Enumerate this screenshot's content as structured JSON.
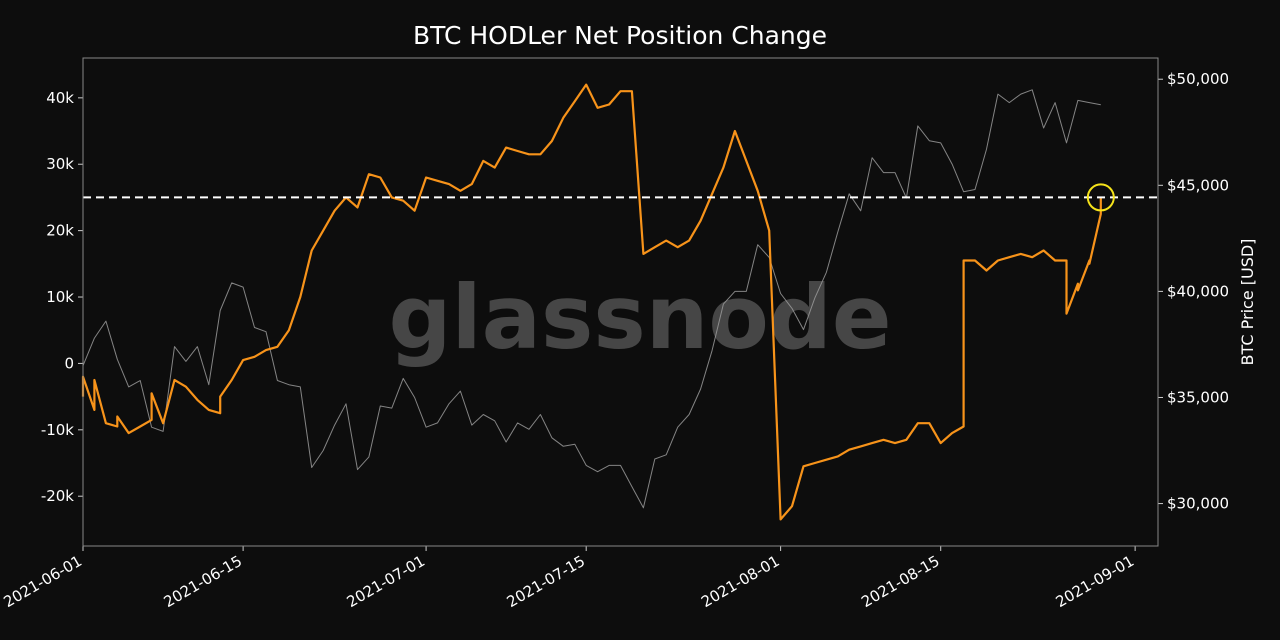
{
  "chart_data": {
    "type": "line",
    "title": "BTC HODLer Net Position Change",
    "watermark": "glassnode",
    "ylabel_right": "BTC Price [USD]",
    "grid": false,
    "x_range": [
      "2021-06-01",
      "2021-09-03"
    ],
    "x_ticks": [
      "2021-06-01",
      "2021-06-15",
      "2021-07-01",
      "2021-07-15",
      "2021-08-01",
      "2021-08-15",
      "2021-09-01"
    ],
    "y_left": {
      "range": [
        -27500,
        46000
      ],
      "ticks": [
        40000,
        30000,
        20000,
        10000,
        0,
        -10000,
        -20000
      ],
      "tick_labels": [
        "40k",
        "30k",
        "20k",
        "10k",
        "0",
        "-10k",
        "-20k"
      ]
    },
    "y_right": {
      "range": [
        28000,
        51000
      ],
      "ticks": [
        50000,
        45000,
        40000,
        35000,
        30000
      ],
      "tick_labels": [
        "$50,000",
        "$45,000",
        "$40,000",
        "$35,000",
        "$30,000"
      ]
    },
    "reference_line": {
      "axis": "left",
      "value": 25000,
      "style": "dashed",
      "color": "#ffffff"
    },
    "highlight_circle": {
      "date": "2021-08-29",
      "value": 25000,
      "color": "#f5e31a"
    },
    "colors": {
      "background": "#0d0d0d",
      "hodler_series": "#f7931a",
      "price_series": "#9a9a9a",
      "frame": "#888888"
    },
    "series": [
      {
        "name": "HODLer Net Position Change",
        "axis": "left",
        "color": "#f7931a",
        "points": [
          [
            "2021-06-01",
            -5000
          ],
          [
            "2021-06-01",
            -2000
          ],
          [
            "2021-06-02",
            -7000
          ],
          [
            "2021-06-02",
            -2500
          ],
          [
            "2021-06-03",
            -9000
          ],
          [
            "2021-06-04",
            -9500
          ],
          [
            "2021-06-04",
            -8000
          ],
          [
            "2021-06-05",
            -10500
          ],
          [
            "2021-06-06",
            -9500
          ],
          [
            "2021-06-07",
            -8500
          ],
          [
            "2021-06-07",
            -4500
          ],
          [
            "2021-06-08",
            -9000
          ],
          [
            "2021-06-09",
            -2500
          ],
          [
            "2021-06-10",
            -3500
          ],
          [
            "2021-06-11",
            -5500
          ],
          [
            "2021-06-12",
            -7000
          ],
          [
            "2021-06-13",
            -7500
          ],
          [
            "2021-06-13",
            -5000
          ],
          [
            "2021-06-14",
            -2500
          ],
          [
            "2021-06-15",
            500
          ],
          [
            "2021-06-16",
            1000
          ],
          [
            "2021-06-17",
            2000
          ],
          [
            "2021-06-18",
            2500
          ],
          [
            "2021-06-19",
            5000
          ],
          [
            "2021-06-20",
            10000
          ],
          [
            "2021-06-21",
            17000
          ],
          [
            "2021-06-22",
            20000
          ],
          [
            "2021-06-23",
            23000
          ],
          [
            "2021-06-24",
            25000
          ],
          [
            "2021-06-25",
            23500
          ],
          [
            "2021-06-26",
            28500
          ],
          [
            "2021-06-27",
            28000
          ],
          [
            "2021-06-28",
            25000
          ],
          [
            "2021-06-29",
            24500
          ],
          [
            "2021-06-30",
            23000
          ],
          [
            "2021-07-01",
            28000
          ],
          [
            "2021-07-02",
            27500
          ],
          [
            "2021-07-03",
            27000
          ],
          [
            "2021-07-04",
            26000
          ],
          [
            "2021-07-05",
            27000
          ],
          [
            "2021-07-06",
            30500
          ],
          [
            "2021-07-07",
            29500
          ],
          [
            "2021-07-08",
            32500
          ],
          [
            "2021-07-09",
            32000
          ],
          [
            "2021-07-10",
            31500
          ],
          [
            "2021-07-11",
            31500
          ],
          [
            "2021-07-12",
            33500
          ],
          [
            "2021-07-13",
            37000
          ],
          [
            "2021-07-14",
            39500
          ],
          [
            "2021-07-15",
            42000
          ],
          [
            "2021-07-16",
            38500
          ],
          [
            "2021-07-17",
            39000
          ],
          [
            "2021-07-18",
            41000
          ],
          [
            "2021-07-19",
            41000
          ],
          [
            "2021-07-20",
            16500
          ],
          [
            "2021-07-21",
            17500
          ],
          [
            "2021-07-22",
            18500
          ],
          [
            "2021-07-23",
            17500
          ],
          [
            "2021-07-24",
            18500
          ],
          [
            "2021-07-25",
            21500
          ],
          [
            "2021-07-26",
            25500
          ],
          [
            "2021-07-27",
            29500
          ],
          [
            "2021-07-28",
            35000
          ],
          [
            "2021-07-29",
            30500
          ],
          [
            "2021-07-30",
            26000
          ],
          [
            "2021-07-31",
            20000
          ],
          [
            "2021-08-01",
            -23500
          ],
          [
            "2021-08-02",
            -21500
          ],
          [
            "2021-08-03",
            -15500
          ],
          [
            "2021-08-04",
            -15000
          ],
          [
            "2021-08-05",
            -14500
          ],
          [
            "2021-08-06",
            -14000
          ],
          [
            "2021-08-07",
            -13000
          ],
          [
            "2021-08-08",
            -12500
          ],
          [
            "2021-08-09",
            -12000
          ],
          [
            "2021-08-10",
            -11500
          ],
          [
            "2021-08-11",
            -12000
          ],
          [
            "2021-08-12",
            -11500
          ],
          [
            "2021-08-13",
            -9000
          ],
          [
            "2021-08-14",
            -9000
          ],
          [
            "2021-08-15",
            -12000
          ],
          [
            "2021-08-16",
            -10500
          ],
          [
            "2021-08-17",
            -9500
          ],
          [
            "2021-08-17",
            15500
          ],
          [
            "2021-08-18",
            15500
          ],
          [
            "2021-08-19",
            14000
          ],
          [
            "2021-08-20",
            15500
          ],
          [
            "2021-08-21",
            16000
          ],
          [
            "2021-08-22",
            16500
          ],
          [
            "2021-08-23",
            16000
          ],
          [
            "2021-08-24",
            17000
          ],
          [
            "2021-08-25",
            15500
          ],
          [
            "2021-08-26",
            15500
          ],
          [
            "2021-08-26",
            7500
          ],
          [
            "2021-08-27",
            12000
          ],
          [
            "2021-08-27",
            11000
          ],
          [
            "2021-08-28",
            15500
          ],
          [
            "2021-08-28",
            15000
          ],
          [
            "2021-08-29",
            22500
          ],
          [
            "2021-08-29",
            25000
          ]
        ]
      },
      {
        "name": "BTC Price",
        "axis": "right",
        "color": "#9a9a9a",
        "points": [
          [
            "2021-06-01",
            36500
          ],
          [
            "2021-06-02",
            37800
          ],
          [
            "2021-06-03",
            38600
          ],
          [
            "2021-06-04",
            36800
          ],
          [
            "2021-06-05",
            35500
          ],
          [
            "2021-06-06",
            35800
          ],
          [
            "2021-06-07",
            33600
          ],
          [
            "2021-06-08",
            33400
          ],
          [
            "2021-06-09",
            37400
          ],
          [
            "2021-06-10",
            36700
          ],
          [
            "2021-06-11",
            37400
          ],
          [
            "2021-06-12",
            35600
          ],
          [
            "2021-06-13",
            39100
          ],
          [
            "2021-06-14",
            40400
          ],
          [
            "2021-06-15",
            40200
          ],
          [
            "2021-06-16",
            38300
          ],
          [
            "2021-06-17",
            38100
          ],
          [
            "2021-06-18",
            35800
          ],
          [
            "2021-06-19",
            35600
          ],
          [
            "2021-06-20",
            35500
          ],
          [
            "2021-06-21",
            31700
          ],
          [
            "2021-06-22",
            32500
          ],
          [
            "2021-06-23",
            33700
          ],
          [
            "2021-06-24",
            34700
          ],
          [
            "2021-06-25",
            31600
          ],
          [
            "2021-06-26",
            32200
          ],
          [
            "2021-06-27",
            34600
          ],
          [
            "2021-06-28",
            34500
          ],
          [
            "2021-06-29",
            35900
          ],
          [
            "2021-06-30",
            35000
          ],
          [
            "2021-07-01",
            33600
          ],
          [
            "2021-07-02",
            33800
          ],
          [
            "2021-07-03",
            34700
          ],
          [
            "2021-07-04",
            35300
          ],
          [
            "2021-07-05",
            33700
          ],
          [
            "2021-07-06",
            34200
          ],
          [
            "2021-07-07",
            33900
          ],
          [
            "2021-07-08",
            32900
          ],
          [
            "2021-07-09",
            33800
          ],
          [
            "2021-07-10",
            33500
          ],
          [
            "2021-07-11",
            34200
          ],
          [
            "2021-07-12",
            33100
          ],
          [
            "2021-07-13",
            32700
          ],
          [
            "2021-07-14",
            32800
          ],
          [
            "2021-07-15",
            31800
          ],
          [
            "2021-07-16",
            31500
          ],
          [
            "2021-07-17",
            31800
          ],
          [
            "2021-07-18",
            31800
          ],
          [
            "2021-07-19",
            30800
          ],
          [
            "2021-07-20",
            29800
          ],
          [
            "2021-07-21",
            32100
          ],
          [
            "2021-07-22",
            32300
          ],
          [
            "2021-07-23",
            33600
          ],
          [
            "2021-07-24",
            34200
          ],
          [
            "2021-07-25",
            35400
          ],
          [
            "2021-07-26",
            37200
          ],
          [
            "2021-07-27",
            39400
          ],
          [
            "2021-07-28",
            40000
          ],
          [
            "2021-07-29",
            40000
          ],
          [
            "2021-07-30",
            42200
          ],
          [
            "2021-07-31",
            41600
          ],
          [
            "2021-08-01",
            39900
          ],
          [
            "2021-08-02",
            39200
          ],
          [
            "2021-08-03",
            38200
          ],
          [
            "2021-08-04",
            39700
          ],
          [
            "2021-08-05",
            40900
          ],
          [
            "2021-08-06",
            42800
          ],
          [
            "2021-08-07",
            44600
          ],
          [
            "2021-08-08",
            43800
          ],
          [
            "2021-08-09",
            46300
          ],
          [
            "2021-08-10",
            45600
          ],
          [
            "2021-08-11",
            45600
          ],
          [
            "2021-08-12",
            44400
          ],
          [
            "2021-08-13",
            47800
          ],
          [
            "2021-08-14",
            47100
          ],
          [
            "2021-08-15",
            47000
          ],
          [
            "2021-08-16",
            46000
          ],
          [
            "2021-08-17",
            44700
          ],
          [
            "2021-08-18",
            44800
          ],
          [
            "2021-08-19",
            46700
          ],
          [
            "2021-08-20",
            49300
          ],
          [
            "2021-08-21",
            48900
          ],
          [
            "2021-08-22",
            49300
          ],
          [
            "2021-08-23",
            49500
          ],
          [
            "2021-08-24",
            47700
          ],
          [
            "2021-08-25",
            48900
          ],
          [
            "2021-08-26",
            47000
          ],
          [
            "2021-08-27",
            49000
          ],
          [
            "2021-08-28",
            48900
          ],
          [
            "2021-08-29",
            48800
          ]
        ]
      }
    ]
  }
}
